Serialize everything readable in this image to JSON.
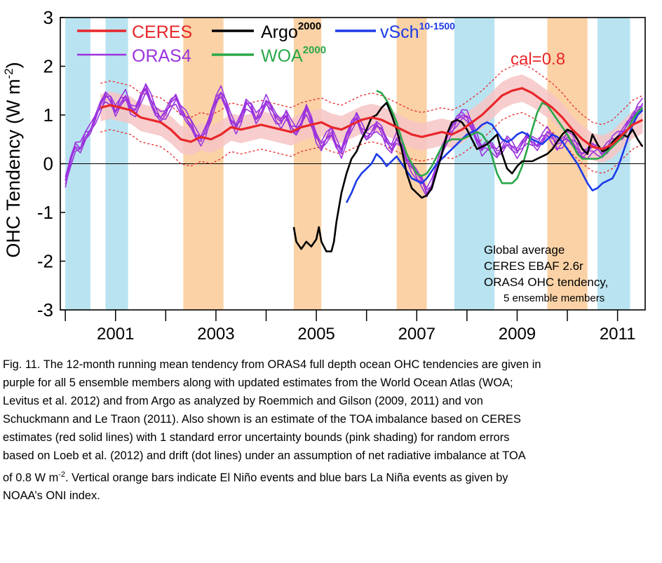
{
  "chart_data": {
    "type": "line",
    "ylabel": "OHC Tendency",
    "ylabel_unit_base": "(W m",
    "ylabel_unit_exp": "-2",
    "ylabel_unit_close": ")",
    "xlim": [
      1999.9,
      2011.55
    ],
    "ylim": [
      -3,
      3
    ],
    "x_ticks": [
      2001,
      2003,
      2005,
      2007,
      2009,
      2011
    ],
    "x_minor_ticks": [
      2000,
      2002,
      2004,
      2006,
      2008,
      2010
    ],
    "y_ticks": [
      3,
      2,
      1,
      0,
      -1,
      -2,
      -3
    ],
    "zero_line": true,
    "la_nina_color": "#b9e3f1",
    "el_nino_color": "#fad2a6",
    "la_nina_periods": [
      [
        2000.0,
        2000.5
      ],
      [
        2000.8,
        2001.25
      ],
      [
        2007.75,
        2008.55
      ],
      [
        2010.6,
        2011.25
      ]
    ],
    "el_nino_periods": [
      [
        2002.35,
        2003.15
      ],
      [
        2004.55,
        2005.1
      ],
      [
        2006.6,
        2007.2
      ],
      [
        2009.6,
        2010.4
      ]
    ],
    "legend": {
      "ceres": "CERES",
      "oras4": "ORAS4",
      "argo": "Argo",
      "argo_sup": "2000",
      "woa": "WOA",
      "woa_sup": "2000",
      "vsch": "vSch",
      "vsch_sup": "10-1500"
    },
    "annotation_cal": "cal=0.8",
    "annotation_lines": [
      "Global average",
      "CERES EBAF 2.6r",
      "ORAS4 OHC tendency,",
      "5 ensemble members"
    ],
    "colors": {
      "ceres": "#e8262a",
      "ceres_band": "#f6c4c4",
      "oras4": "#9b33dd",
      "argo": "#000000",
      "woa": "#2aa84a",
      "vsch": "#1c3ae8",
      "cal_text": "#e8262a",
      "vsch_sup": "#1c3ae8",
      "woa_text": "#2aa84a"
    },
    "series": [
      {
        "name": "CERES",
        "x": [
          2000.7,
          2000.9,
          2001.1,
          2001.3,
          2001.5,
          2001.7,
          2001.9,
          2002.1,
          2002.3,
          2002.5,
          2002.7,
          2002.9,
          2003.1,
          2003.3,
          2003.5,
          2003.7,
          2003.9,
          2004.1,
          2004.3,
          2004.5,
          2004.7,
          2004.9,
          2005.1,
          2005.3,
          2005.5,
          2005.7,
          2005.9,
          2006.1,
          2006.3,
          2006.5,
          2006.7,
          2006.9,
          2007.1,
          2007.3,
          2007.5,
          2007.7,
          2007.9,
          2008.1,
          2008.3,
          2008.5,
          2008.7,
          2008.9,
          2009.1,
          2009.3,
          2009.5,
          2009.7,
          2009.9,
          2010.1,
          2010.3,
          2010.5,
          2010.7,
          2010.9,
          2011.1,
          2011.3,
          2011.5
        ],
        "y": [
          1.15,
          1.2,
          1.15,
          1.1,
          0.95,
          0.9,
          0.85,
          0.7,
          0.5,
          0.45,
          0.55,
          0.5,
          0.6,
          0.75,
          0.7,
          0.75,
          0.8,
          0.75,
          0.7,
          0.65,
          0.75,
          0.8,
          0.85,
          0.75,
          0.7,
          0.8,
          0.9,
          0.95,
          0.9,
          0.8,
          0.7,
          0.6,
          0.55,
          0.6,
          0.65,
          0.6,
          0.7,
          0.85,
          1.0,
          1.2,
          1.4,
          1.5,
          1.55,
          1.45,
          1.3,
          1.15,
          0.95,
          0.7,
          0.5,
          0.35,
          0.3,
          0.4,
          0.6,
          0.8,
          0.9
        ]
      },
      {
        "name": "ORAS4",
        "x": [
          2000.0,
          2000.1,
          2000.2,
          2000.3,
          2000.4,
          2000.5,
          2000.6,
          2000.7,
          2000.8,
          2000.9,
          2001.0,
          2001.1,
          2001.2,
          2001.3,
          2001.4,
          2001.5,
          2001.6,
          2001.7,
          2001.8,
          2001.9,
          2002.0,
          2002.1,
          2002.2,
          2002.3,
          2002.4,
          2002.5,
          2002.6,
          2002.7,
          2002.8,
          2002.9,
          2003.0,
          2003.1,
          2003.2,
          2003.3,
          2003.4,
          2003.5,
          2003.6,
          2003.7,
          2003.8,
          2003.9,
          2004.0,
          2004.1,
          2004.2,
          2004.3,
          2004.4,
          2004.5,
          2004.6,
          2004.7,
          2004.8,
          2004.9,
          2005.0,
          2005.1,
          2005.2,
          2005.3,
          2005.4,
          2005.5,
          2005.6,
          2005.7,
          2005.8,
          2005.9,
          2006.0,
          2006.1,
          2006.2,
          2006.3,
          2006.4,
          2006.5,
          2006.6,
          2006.7,
          2006.8,
          2006.9,
          2007.0,
          2007.1,
          2007.2,
          2007.3,
          2007.4,
          2007.5,
          2007.6,
          2007.7,
          2007.8,
          2007.9,
          2008.0,
          2008.1,
          2008.2,
          2008.3,
          2008.4,
          2008.5,
          2008.6,
          2008.7,
          2008.8,
          2008.9,
          2009.0,
          2009.1,
          2009.2,
          2009.3,
          2009.4,
          2009.5,
          2009.6,
          2009.7,
          2009.8,
          2009.9,
          2010.0,
          2010.1,
          2010.2,
          2010.3,
          2010.4,
          2010.5,
          2010.6,
          2010.7,
          2010.8,
          2010.9,
          2011.0,
          2011.1,
          2011.2,
          2011.3,
          2011.4,
          2011.5
        ],
        "y": [
          -0.35,
          0.05,
          0.35,
          0.3,
          0.55,
          0.7,
          0.95,
          1.2,
          1.4,
          1.3,
          1.05,
          1.25,
          1.4,
          1.15,
          1.1,
          1.35,
          1.55,
          1.3,
          1.05,
          0.95,
          1.05,
          1.25,
          1.35,
          1.1,
          0.95,
          0.8,
          0.6,
          0.5,
          0.7,
          1.0,
          1.3,
          1.45,
          1.2,
          0.9,
          0.75,
          0.95,
          1.25,
          1.15,
          0.9,
          1.05,
          1.3,
          1.15,
          0.95,
          0.85,
          1.0,
          0.75,
          0.65,
          0.85,
          1.15,
          0.9,
          0.55,
          0.35,
          0.5,
          0.65,
          0.4,
          0.25,
          0.55,
          0.8,
          0.95,
          0.7,
          0.55,
          0.65,
          0.8,
          0.7,
          0.45,
          0.3,
          0.5,
          0.4,
          0.1,
          -0.05,
          -0.2,
          -0.35,
          -0.6,
          -0.45,
          -0.1,
          0.25,
          0.55,
          0.75,
          0.9,
          1.0,
          0.95,
          0.75,
          0.5,
          0.3,
          0.4,
          0.35,
          0.2,
          0.3,
          0.45,
          0.35,
          0.25,
          0.4,
          0.55,
          0.45,
          0.35,
          0.5,
          0.65,
          0.55,
          0.4,
          0.45,
          0.55,
          0.45,
          0.3,
          0.2,
          0.25,
          0.35,
          0.3,
          0.2,
          0.3,
          0.45,
          0.55,
          0.65,
          0.8,
          0.95,
          1.1,
          1.2
        ]
      },
      {
        "name": "Argo",
        "x": [
          2004.55,
          2004.6,
          2004.7,
          2004.8,
          2004.9,
          2005.0,
          2005.05,
          2005.1,
          2005.2,
          2005.3,
          2005.35,
          2005.4,
          2005.5,
          2005.6,
          2005.7,
          2005.8,
          2005.9,
          2006.0,
          2006.1,
          2006.2,
          2006.3,
          2006.4,
          2006.5,
          2006.6,
          2006.7,
          2006.8,
          2006.9,
          2007.0,
          2007.1,
          2007.2,
          2007.3,
          2007.4,
          2007.5,
          2007.6,
          2007.7,
          2007.8,
          2007.9,
          2008.0,
          2008.1,
          2008.2,
          2008.3,
          2008.4,
          2008.5,
          2008.6,
          2008.7,
          2008.8,
          2008.9,
          2009.0,
          2009.1,
          2009.2,
          2009.3,
          2009.4,
          2009.5,
          2009.6,
          2009.7,
          2009.8,
          2009.9,
          2010.0,
          2010.1,
          2010.2,
          2010.3,
          2010.4,
          2010.5,
          2010.6,
          2010.7,
          2010.8,
          2010.9,
          2011.0,
          2011.1,
          2011.2,
          2011.3,
          2011.4,
          2011.5
        ],
        "y": [
          -1.3,
          -1.6,
          -1.75,
          -1.6,
          -1.7,
          -1.55,
          -1.3,
          -1.6,
          -1.8,
          -1.8,
          -1.6,
          -1.2,
          -0.6,
          -0.2,
          0.1,
          0.25,
          0.5,
          0.7,
          0.95,
          1.0,
          1.15,
          1.25,
          1.0,
          0.7,
          0.3,
          -0.2,
          -0.5,
          -0.6,
          -0.7,
          -0.65,
          -0.5,
          -0.15,
          0.2,
          0.6,
          0.85,
          0.9,
          0.85,
          0.7,
          0.5,
          0.3,
          0.35,
          0.4,
          0.5,
          0.6,
          0.2,
          -0.1,
          -0.2,
          -0.05,
          0.05,
          0.05,
          0.05,
          0.1,
          0.15,
          0.2,
          0.3,
          0.45,
          0.6,
          0.7,
          0.65,
          0.5,
          0.3,
          0.2,
          0.6,
          0.4,
          0.25,
          0.3,
          0.45,
          0.55,
          0.6,
          0.55,
          0.7,
          0.5,
          0.35
        ]
      },
      {
        "name": "WOA",
        "x": [
          2006.2,
          2006.3,
          2006.4,
          2006.5,
          2006.6,
          2006.7,
          2006.8,
          2006.9,
          2007.0,
          2007.1,
          2007.2,
          2007.3,
          2007.4,
          2007.5,
          2007.6,
          2007.7,
          2007.8,
          2007.9,
          2008.0,
          2008.1,
          2008.2,
          2008.3,
          2008.4,
          2008.5,
          2008.6,
          2008.7,
          2008.8,
          2008.9,
          2009.0,
          2009.1,
          2009.2,
          2009.3,
          2009.4,
          2009.5,
          2009.6,
          2009.7,
          2009.8,
          2009.9,
          2010.0,
          2010.1,
          2010.2,
          2010.3,
          2010.4,
          2010.5,
          2010.6,
          2010.7,
          2010.8,
          2010.9,
          2011.0,
          2011.1,
          2011.2,
          2011.3,
          2011.4,
          2011.5
        ],
        "y": [
          1.5,
          1.45,
          1.3,
          1.1,
          0.85,
          0.5,
          0.2,
          0.0,
          -0.2,
          -0.25,
          -0.2,
          -0.05,
          0.15,
          0.35,
          0.45,
          0.5,
          0.5,
          0.5,
          0.55,
          0.6,
          0.65,
          0.6,
          0.45,
          0.15,
          -0.2,
          -0.4,
          -0.4,
          -0.4,
          -0.3,
          -0.05,
          0.3,
          0.7,
          1.05,
          1.25,
          1.2,
          1.05,
          0.9,
          0.75,
          0.6,
          0.4,
          0.2,
          0.1,
          0.1,
          0.1,
          0.1,
          0.15,
          0.25,
          0.35,
          0.45,
          0.55,
          0.7,
          0.9,
          1.05,
          1.15
        ]
      },
      {
        "name": "vSch",
        "x": [
          2005.6,
          2005.7,
          2005.8,
          2005.9,
          2006.0,
          2006.1,
          2006.2,
          2006.3,
          2006.4,
          2006.5,
          2006.6,
          2006.7,
          2006.8,
          2006.9,
          2007.0,
          2007.1,
          2007.2,
          2007.3,
          2007.4,
          2007.5,
          2007.6,
          2007.7,
          2007.8,
          2007.9,
          2008.0,
          2008.1,
          2008.2,
          2008.3,
          2008.4,
          2008.5,
          2008.6,
          2008.7,
          2008.8,
          2008.9,
          2009.0,
          2009.1,
          2009.2,
          2009.3,
          2009.4,
          2009.5,
          2009.6,
          2009.7,
          2009.8,
          2009.9,
          2010.0,
          2010.1,
          2010.2,
          2010.3,
          2010.4,
          2010.5,
          2010.6,
          2010.7,
          2010.8,
          2010.9,
          2011.0,
          2011.1,
          2011.2,
          2011.3,
          2011.4,
          2011.5
        ],
        "y": [
          -0.8,
          -0.6,
          -0.35,
          -0.2,
          -0.1,
          0.0,
          0.2,
          0.1,
          -0.05,
          0.05,
          0.15,
          0.0,
          -0.15,
          -0.3,
          -0.35,
          -0.4,
          -0.3,
          -0.15,
          0.0,
          0.1,
          0.2,
          0.3,
          0.4,
          0.5,
          0.6,
          0.65,
          0.7,
          0.8,
          0.85,
          0.8,
          0.65,
          0.5,
          0.45,
          0.5,
          0.6,
          0.65,
          0.6,
          0.5,
          0.45,
          0.4,
          0.5,
          0.6,
          0.55,
          0.45,
          0.3,
          0.15,
          0.0,
          -0.2,
          -0.4,
          -0.55,
          -0.5,
          -0.4,
          -0.35,
          -0.3,
          -0.1,
          0.2,
          0.5,
          0.8,
          1.0,
          1.1
        ]
      }
    ]
  },
  "caption": {
    "lines": [
      "Fig. 11. The 12-month running mean tendency from ORAS4 full depth ocean OHC tendencies are given in",
      "purple for all 5 ensemble members along with updated estimates from the World Ocean Atlas (WOA;",
      "Levitus et al. 2012) and from Argo as analyzed by Roemmich and Gilson (2009, 2011) and von",
      "Schuckmann and Le Traon (2011).  Also shown is an estimate of the TOA imbalance based on CERES",
      "estimates (red solid lines) with 1 standard error uncertainty bounds (pink shading) for random errors",
      "based on Loeb et al. (2012) and drift (dot lines) under an assumption of net radiative imbalance at TOA"
    ],
    "line7_before": "of 0.8 W m",
    "line7_sup": "-2",
    "line7_after": ".  Vertical orange bars indicate El Niño events and blue bars La Niña events as given by",
    "line8": "NOAA’s ONI index."
  }
}
